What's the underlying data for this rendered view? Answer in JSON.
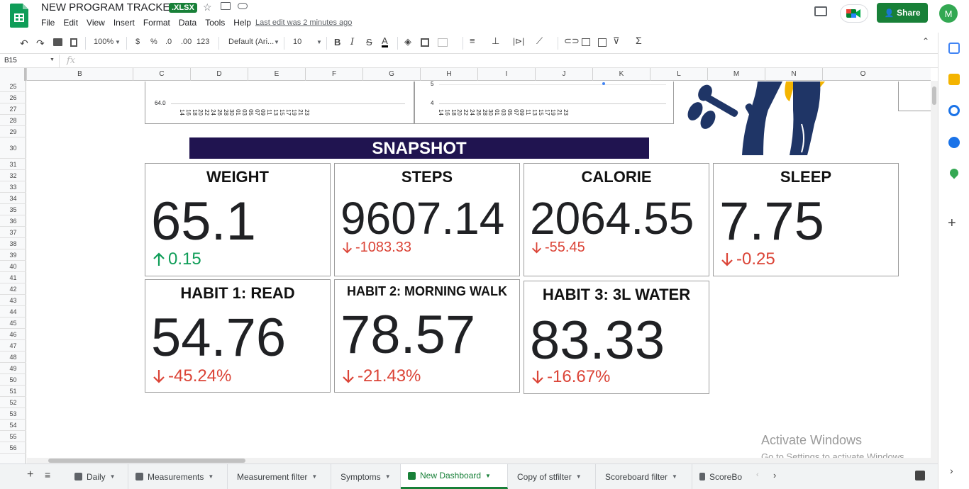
{
  "header": {
    "title": "NEW PROGRAM TRACKER",
    "badge": ".XLSX",
    "last_edit": "Last edit was 2 minutes ago",
    "share_label": "Share",
    "avatar_initial": "M"
  },
  "menu": [
    "File",
    "Edit",
    "View",
    "Insert",
    "Format",
    "Data",
    "Tools",
    "Help"
  ],
  "toolbar": {
    "zoom": "100%",
    "currency": "$",
    "percent": "%",
    "dec_decrease": ".0",
    "dec_increase": ".00",
    "more_formats": "123",
    "font": "Default (Ari...",
    "font_size": "10",
    "bold": "B",
    "italic": "I",
    "strike": "S",
    "text_color": "A"
  },
  "formula_bar": {
    "cell_ref": "B15",
    "fx": "fx"
  },
  "columns": [
    "B",
    "C",
    "D",
    "E",
    "F",
    "G",
    "H",
    "I",
    "J",
    "K",
    "L",
    "M",
    "N",
    "O"
  ],
  "rows": [
    "25",
    "26",
    "27",
    "28",
    "29",
    "30",
    "31",
    "32",
    "33",
    "34",
    "35",
    "36",
    "37",
    "38",
    "39",
    "40",
    "41",
    "42",
    "43",
    "44",
    "45",
    "46",
    "47",
    "48",
    "49",
    "50",
    "51",
    "52",
    "53",
    "54",
    "55",
    "56"
  ],
  "charts": {
    "left_y_label": "64.0",
    "right_y_top": "5",
    "right_y_label": "4",
    "x_ticks": [
      "14",
      "16",
      "18",
      "20",
      "22",
      "24",
      "26",
      "28",
      "30",
      "01",
      "03",
      "05",
      "07",
      "09",
      "11",
      "13",
      "15",
      "17",
      "19",
      "21",
      "23"
    ]
  },
  "snapshot": {
    "title": "SNAPSHOT"
  },
  "cards": [
    {
      "title": "WEIGHT",
      "value": "65.1",
      "delta": "0.15",
      "direction": "up"
    },
    {
      "title": "STEPS",
      "value": "9607.14",
      "delta": "-1083.33",
      "direction": "down"
    },
    {
      "title": "CALORIE",
      "value": "2064.55",
      "delta": "-55.45",
      "direction": "down"
    },
    {
      "title": "SLEEP",
      "value": "7.75",
      "delta": "-0.25",
      "direction": "down"
    },
    {
      "title": "HABIT 1: READ",
      "value": "54.76",
      "delta": "-45.24%",
      "direction": "down"
    },
    {
      "title": "HABIT 2: MORNING WALK",
      "value": "78.57",
      "delta": "-21.43%",
      "direction": "down"
    },
    {
      "title": "HABIT 3: 3L WATER",
      "value": "83.33",
      "delta": "-16.67%",
      "direction": "down"
    }
  ],
  "watermark": {
    "line1": "Activate Windows",
    "line2": "Go to Settings to activate Windows."
  },
  "tabs": [
    {
      "label": "Daily",
      "icon": "form-icon"
    },
    {
      "label": "Measurements",
      "icon": "form-icon"
    },
    {
      "label": "Measurement filter",
      "icon": ""
    },
    {
      "label": "Symptoms",
      "icon": ""
    },
    {
      "label": "New Dashboard",
      "icon": "form-icon",
      "active": true
    },
    {
      "label": "Copy of stfilter",
      "icon": ""
    },
    {
      "label": "Scoreboard filter",
      "icon": ""
    },
    {
      "label": "ScoreBo",
      "icon": "form-icon"
    }
  ],
  "colors": {
    "brand_green": "#188038",
    "banner": "#201450",
    "delta_down": "#db4437",
    "delta_up": "#0f9d58"
  }
}
